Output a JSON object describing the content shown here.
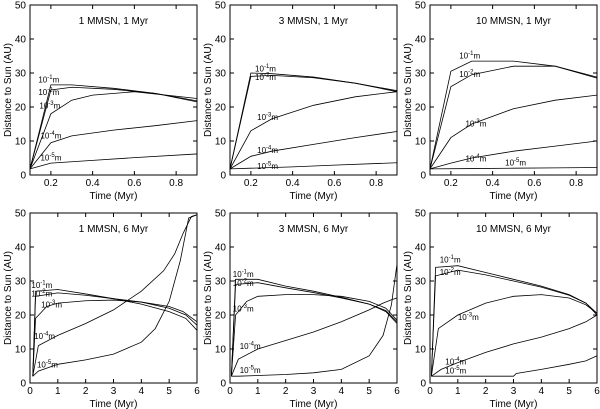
{
  "chart_data": [
    {
      "type": "line",
      "title": "1 MMSN, 1 Myr",
      "xlabel": "Time (Myr)",
      "ylabel": "Distance to Sun (AU)",
      "xlim": [
        0.1,
        0.9
      ],
      "ylim": [
        0,
        50
      ],
      "xticks": [
        "0.2",
        "0.4",
        "0.6",
        "0.8"
      ],
      "xtick_values": [
        0.2,
        0.4,
        0.6,
        0.8
      ],
      "yticks": [
        "0",
        "10",
        "20",
        "30",
        "40",
        "50"
      ],
      "ytick_values": [
        0,
        10,
        20,
        30,
        40,
        50
      ],
      "series": [
        {
          "name": "10^-1 m",
          "base": "10",
          "exp": "-1",
          "unit": "m",
          "x": [
            0.1,
            0.2,
            0.3,
            0.5,
            0.7,
            0.9
          ],
          "y": [
            1.8,
            26.5,
            26.5,
            25.5,
            24,
            21.5
          ],
          "label_at": [
            0.14,
            27.2
          ]
        },
        {
          "name": "10^-2 m",
          "base": "10",
          "exp": "-2",
          "unit": "m",
          "x": [
            0.1,
            0.2,
            0.3,
            0.5,
            0.7,
            0.9
          ],
          "y": [
            1.8,
            25,
            25.8,
            25.2,
            24,
            21.8
          ],
          "label_at": [
            0.14,
            23.5
          ]
        },
        {
          "name": "10^-3 m",
          "base": "10",
          "exp": "-3",
          "unit": "m",
          "x": [
            0.1,
            0.2,
            0.3,
            0.4,
            0.6,
            0.9
          ],
          "y": [
            1.8,
            18,
            22,
            23.5,
            24.5,
            22.5
          ],
          "label_at": [
            0.145,
            19.5
          ]
        },
        {
          "name": "10^-4 m",
          "base": "10",
          "exp": "-4",
          "unit": "m",
          "x": [
            0.1,
            0.2,
            0.3,
            0.5,
            0.7,
            0.9
          ],
          "y": [
            1.8,
            9.5,
            11.5,
            13.2,
            14.5,
            16
          ],
          "label_at": [
            0.15,
            10.8
          ]
        },
        {
          "name": "10^-5 m",
          "base": "10",
          "exp": "-5",
          "unit": "m",
          "x": [
            0.1,
            0.2,
            0.4,
            0.6,
            0.9
          ],
          "y": [
            1.8,
            3.5,
            4.3,
            5.1,
            6.2
          ],
          "label_at": [
            0.15,
            4.3
          ]
        }
      ]
    },
    {
      "type": "line",
      "title": "3 MMSN, 1 Myr",
      "xlabel": "Time (Myr)",
      "ylabel": "Distance to Sun (AU)",
      "xlim": [
        0.1,
        0.9
      ],
      "ylim": [
        0,
        50
      ],
      "xticks": [
        "0.2",
        "0.4",
        "0.6",
        "0.8"
      ],
      "xtick_values": [
        0.2,
        0.4,
        0.6,
        0.8
      ],
      "yticks": [
        "0",
        "10",
        "20",
        "30",
        "40",
        "50"
      ],
      "ytick_values": [
        0,
        10,
        20,
        30,
        40,
        50
      ],
      "series": [
        {
          "name": "10^-1 m",
          "base": "10",
          "exp": "-1",
          "unit": "m",
          "x": [
            0.1,
            0.2,
            0.3,
            0.5,
            0.7,
            0.9
          ],
          "y": [
            1.8,
            30,
            29.8,
            28.8,
            27,
            24.5
          ],
          "label_at": [
            0.22,
            30.5
          ]
        },
        {
          "name": "10^-2 m",
          "base": "10",
          "exp": "-2",
          "unit": "m",
          "x": [
            0.1,
            0.2,
            0.3,
            0.5,
            0.7,
            0.9
          ],
          "y": [
            1.8,
            29,
            29.3,
            28.6,
            27,
            24.8
          ],
          "label_at": [
            0.22,
            28
          ]
        },
        {
          "name": "10^-3 m",
          "base": "10",
          "exp": "-3",
          "unit": "m",
          "x": [
            0.1,
            0.2,
            0.3,
            0.5,
            0.7,
            0.9
          ],
          "y": [
            1.8,
            13,
            16.5,
            20.5,
            23,
            24.5
          ],
          "label_at": [
            0.23,
            16.2
          ]
        },
        {
          "name": "10^-4 m",
          "base": "10",
          "exp": "-4",
          "unit": "m",
          "x": [
            0.1,
            0.2,
            0.3,
            0.5,
            0.7,
            0.9
          ],
          "y": [
            1.8,
            5.5,
            7,
            9,
            11,
            12.8
          ],
          "label_at": [
            0.23,
            6.5
          ]
        },
        {
          "name": "10^-5 m",
          "base": "10",
          "exp": "-5",
          "unit": "m",
          "x": [
            0.1,
            0.2,
            0.4,
            0.6,
            0.9
          ],
          "y": [
            1.8,
            2,
            2.4,
            2.9,
            3.6
          ],
          "label_at": [
            0.23,
            1.7
          ]
        }
      ]
    },
    {
      "type": "line",
      "title": "10 MMSN, 1 Myr",
      "xlabel": "Time (Myr)",
      "ylabel": "Distance to Sun (AU)",
      "xlim": [
        0.1,
        0.9
      ],
      "ylim": [
        0,
        50
      ],
      "xticks": [
        "0.2",
        "0.4",
        "0.6",
        "0.8"
      ],
      "xtick_values": [
        0.2,
        0.4,
        0.6,
        0.8
      ],
      "yticks": [
        "0",
        "10",
        "20",
        "30",
        "40",
        "50"
      ],
      "ytick_values": [
        0,
        10,
        20,
        30,
        40,
        50
      ],
      "series": [
        {
          "name": "10^-1 m",
          "base": "10",
          "exp": "-1",
          "unit": "m",
          "x": [
            0.1,
            0.2,
            0.3,
            0.5,
            0.7,
            0.9
          ],
          "y": [
            1.8,
            30.5,
            33.5,
            33.5,
            32,
            28.5
          ],
          "label_at": [
            0.24,
            34.2
          ]
        },
        {
          "name": "10^-2 m",
          "base": "10",
          "exp": "-2",
          "unit": "m",
          "x": [
            0.1,
            0.2,
            0.3,
            0.5,
            0.7,
            0.9
          ],
          "y": [
            1.8,
            26,
            29.5,
            32,
            32,
            28.8
          ],
          "label_at": [
            0.24,
            28.8
          ]
        },
        {
          "name": "10^-3 m",
          "base": "10",
          "exp": "-3",
          "unit": "m",
          "x": [
            0.1,
            0.2,
            0.3,
            0.5,
            0.7,
            0.9
          ],
          "y": [
            1.8,
            11,
            15,
            19.5,
            22,
            23.5
          ],
          "label_at": [
            0.27,
            14.2
          ]
        },
        {
          "name": "10^-4 m",
          "base": "10",
          "exp": "-4",
          "unit": "m",
          "x": [
            0.1,
            0.2,
            0.3,
            0.5,
            0.7,
            0.9
          ],
          "y": [
            1.8,
            3.5,
            5,
            7,
            8.5,
            10
          ],
          "label_at": [
            0.27,
            4
          ]
        },
        {
          "name": "10^-5 m",
          "base": "10",
          "exp": "-5",
          "unit": "m",
          "x": [
            0.1,
            0.3,
            0.5,
            0.7,
            0.9
          ],
          "y": [
            1.8,
            1.9,
            2,
            2.1,
            2.2
          ],
          "label_at": [
            0.46,
            2.8
          ]
        }
      ]
    },
    {
      "type": "line",
      "title": "1 MMSN, 6 Myr",
      "xlabel": "Time (Myr)",
      "ylabel": "Distance to Sun (AU)",
      "xlim": [
        0,
        6
      ],
      "ylim": [
        0,
        50
      ],
      "xticks": [
        "0",
        "1",
        "2",
        "3",
        "4",
        "5",
        "6"
      ],
      "xtick_values": [
        0,
        1,
        2,
        3,
        4,
        5,
        6
      ],
      "yticks": [
        "0",
        "10",
        "20",
        "30",
        "40",
        "50"
      ],
      "ytick_values": [
        0,
        10,
        20,
        30,
        40,
        50
      ],
      "series": [
        {
          "name": "10^-1 m",
          "base": "10",
          "exp": "-1",
          "unit": "m",
          "x": [
            0.1,
            0.2,
            1,
            2,
            3,
            4,
            5,
            5.6,
            6
          ],
          "y": [
            2,
            27,
            27.5,
            26.2,
            24.8,
            23.2,
            21,
            19,
            15.5
          ],
          "label_at": [
            0.05,
            28
          ]
        },
        {
          "name": "10^-2 m",
          "base": "10",
          "exp": "-2",
          "unit": "m",
          "x": [
            0.1,
            0.2,
            1,
            2,
            3,
            4,
            5,
            5.6,
            6
          ],
          "y": [
            2,
            25.5,
            26.5,
            25.8,
            24.8,
            23.8,
            22,
            20,
            17
          ],
          "label_at": [
            0.05,
            25.5
          ]
        },
        {
          "name": "10^-3 m",
          "base": "10",
          "exp": "-3",
          "unit": "m",
          "x": [
            0.1,
            0.2,
            0.6,
            1,
            2,
            3,
            4,
            5,
            5.5,
            6
          ],
          "y": [
            2,
            19,
            22.5,
            23.5,
            24.2,
            24.4,
            23.8,
            22.5,
            21,
            18
          ],
          "label_at": [
            0.4,
            22.2
          ]
        },
        {
          "name": "10^-4 m",
          "base": "10",
          "exp": "-4",
          "unit": "m",
          "x": [
            0.1,
            0.3,
            1,
            2,
            3,
            4,
            4.8,
            5.2,
            5.5,
            5.8,
            6
          ],
          "y": [
            2,
            11,
            14,
            17.5,
            21.5,
            27,
            33,
            38,
            44,
            49,
            49.5
          ],
          "label_at": [
            0.15,
            13
          ]
        },
        {
          "name": "10^-5 m",
          "base": "10",
          "exp": "-5",
          "unit": "m",
          "x": [
            0.1,
            0.3,
            1,
            2,
            3,
            4,
            4.5,
            5,
            5.4,
            5.7,
            6
          ],
          "y": [
            2,
            3.5,
            5.5,
            6.8,
            8.5,
            12,
            16,
            24,
            36,
            48.5,
            49.5
          ],
          "label_at": [
            0.25,
            4.5
          ]
        }
      ]
    },
    {
      "type": "line",
      "title": "3 MMSN, 6 Myr",
      "xlabel": "Time (Myr)",
      "ylabel": "Distance to Sun (AU)",
      "xlim": [
        0,
        6
      ],
      "ylim": [
        0,
        50
      ],
      "xticks": [
        "0",
        "1",
        "2",
        "3",
        "4",
        "5",
        "6"
      ],
      "xtick_values": [
        0,
        1,
        2,
        3,
        4,
        5,
        6
      ],
      "yticks": [
        "0",
        "10",
        "20",
        "30",
        "40",
        "50"
      ],
      "ytick_values": [
        0,
        10,
        20,
        30,
        40,
        50
      ],
      "series": [
        {
          "name": "10^-1 m",
          "base": "10",
          "exp": "-1",
          "unit": "m",
          "x": [
            0.05,
            0.2,
            1,
            2,
            3,
            4,
            5,
            5.6,
            6
          ],
          "y": [
            2,
            30.5,
            30.5,
            28.5,
            27,
            25.2,
            23.2,
            21,
            17.5
          ],
          "label_at": [
            0.1,
            31.2
          ]
        },
        {
          "name": "10^-2 m",
          "base": "10",
          "exp": "-2",
          "unit": "m",
          "x": [
            0.05,
            0.2,
            1,
            2,
            3,
            4,
            5,
            5.6,
            6
          ],
          "y": [
            2,
            29,
            29.5,
            28,
            26.6,
            25,
            23.2,
            21.3,
            18
          ],
          "label_at": [
            0.1,
            28.5
          ]
        },
        {
          "name": "10^-3 m",
          "base": "10",
          "exp": "-3",
          "unit": "m",
          "x": [
            0.05,
            0.2,
            0.6,
            1,
            2,
            3,
            4,
            5,
            5.6,
            6
          ],
          "y": [
            2,
            20,
            24,
            25.5,
            26,
            26,
            25.5,
            24,
            22,
            18.5
          ],
          "label_at": [
            0.1,
            21
          ]
        },
        {
          "name": "10^-4 m",
          "base": "10",
          "exp": "-4",
          "unit": "m",
          "x": [
            0.05,
            0.3,
            1,
            2,
            3,
            4,
            5,
            5.5,
            5.8,
            6
          ],
          "y": [
            2,
            7,
            10,
            12.5,
            15,
            18,
            21.5,
            23.5,
            24.5,
            25
          ],
          "label_at": [
            0.35,
            10
          ]
        },
        {
          "name": "10^-5 m",
          "base": "10",
          "exp": "-5",
          "unit": "m",
          "x": [
            0.05,
            0.3,
            1,
            2,
            3,
            4,
            5,
            5.5,
            5.8,
            6
          ],
          "y": [
            2,
            2,
            2.2,
            2.5,
            3,
            4,
            8,
            14,
            23,
            35
          ],
          "label_at": [
            0.35,
            3
          ]
        }
      ]
    },
    {
      "type": "line",
      "title": "10 MMSN, 6 Myr",
      "xlabel": "Time (Myr)",
      "ylabel": "Distance to Sun (AU)",
      "xlim": [
        0,
        6
      ],
      "ylim": [
        0,
        50
      ],
      "xticks": [
        "0",
        "1",
        "2",
        "3",
        "4",
        "5",
        "6"
      ],
      "xtick_values": [
        0,
        1,
        2,
        3,
        4,
        5,
        6
      ],
      "yticks": [
        "0",
        "10",
        "20",
        "30",
        "40",
        "50"
      ],
      "ytick_values": [
        0,
        10,
        20,
        30,
        40,
        50
      ],
      "series": [
        {
          "name": "10^-1 m",
          "base": "10",
          "exp": "-1",
          "unit": "m",
          "x": [
            0.05,
            0.2,
            1,
            2,
            3,
            4,
            5,
            5.6,
            6
          ],
          "y": [
            2,
            34,
            34.5,
            32.5,
            30.5,
            28.5,
            26,
            23.5,
            20
          ],
          "label_at": [
            0.35,
            35.5
          ]
        },
        {
          "name": "10^-2 m",
          "base": "10",
          "exp": "-2",
          "unit": "m",
          "x": [
            0.05,
            0.2,
            1,
            2,
            3,
            4,
            5,
            5.6,
            6
          ],
          "y": [
            2,
            31.5,
            33.2,
            31.8,
            30,
            28.2,
            25.8,
            23.5,
            20.5
          ],
          "label_at": [
            0.35,
            31.8
          ]
        },
        {
          "name": "10^-3 m",
          "base": "10",
          "exp": "-3",
          "unit": "m",
          "x": [
            0.05,
            0.3,
            1,
            2,
            3,
            4,
            5,
            5.6,
            6
          ],
          "y": [
            2,
            16,
            20,
            23.5,
            25.5,
            26,
            25,
            23,
            20.5
          ],
          "label_at": [
            1.0,
            18.5
          ]
        },
        {
          "name": "10^-4 m",
          "base": "10",
          "exp": "-4",
          "unit": "m",
          "x": [
            0.05,
            0.4,
            1,
            2,
            3,
            4,
            5,
            5.6,
            6
          ],
          "y": [
            2,
            4,
            6,
            9,
            11.5,
            13.5,
            16,
            18,
            20
          ],
          "label_at": [
            0.55,
            5.5
          ]
        },
        {
          "name": "10^-5 m",
          "base": "10",
          "exp": "-5",
          "unit": "m",
          "x": [
            0.05,
            1,
            2,
            3,
            3.1,
            4,
            5,
            5.6,
            6
          ],
          "y": [
            2,
            2,
            2,
            2,
            2.8,
            4,
            5.5,
            6.5,
            8
          ],
          "label_at": [
            0.55,
            2.8
          ]
        }
      ]
    }
  ]
}
